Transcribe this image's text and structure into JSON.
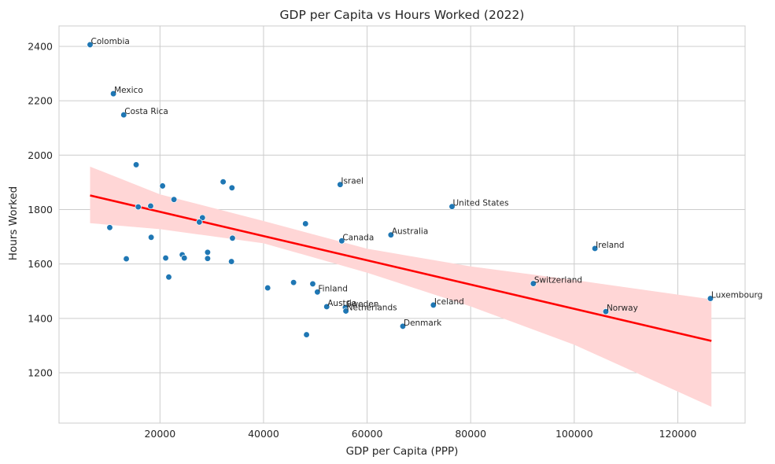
{
  "chart_data": {
    "type": "scatter",
    "title": "GDP per Capita vs Hours Worked (2022)",
    "xlabel": "GDP per Capita (PPP)",
    "ylabel": "Hours Worked",
    "xlim": [
      500,
      133000
    ],
    "ylim": [
      1015,
      2475
    ],
    "x_ticks": [
      20000,
      40000,
      60000,
      80000,
      100000,
      120000
    ],
    "y_ticks": [
      1200,
      1400,
      1600,
      1800,
      2000,
      2200,
      2400
    ],
    "grid": true,
    "point_color": "#1f77b4",
    "regression_color": "#ff0000",
    "band_color": "#ffd6d6",
    "regression": {
      "x": [
        6500,
        126500
      ],
      "y": [
        1852,
        1317
      ]
    },
    "confidence_band": {
      "x": [
        6500,
        20000,
        40000,
        60000,
        80000,
        100000,
        126500
      ],
      "upper": [
        1958,
        1856,
        1758,
        1656,
        1591,
        1541,
        1470
      ],
      "lower": [
        1750,
        1728,
        1676,
        1568,
        1444,
        1303,
        1075
      ]
    },
    "points": [
      {
        "x": 6500,
        "y": 2406,
        "label": "Colombia"
      },
      {
        "x": 11000,
        "y": 2226,
        "label": "Mexico"
      },
      {
        "x": 13000,
        "y": 2148,
        "label": "Costa Rica"
      },
      {
        "x": 15400,
        "y": 1965,
        "label": ""
      },
      {
        "x": 20500,
        "y": 1887,
        "label": ""
      },
      {
        "x": 22700,
        "y": 1837,
        "label": ""
      },
      {
        "x": 32200,
        "y": 1902,
        "label": ""
      },
      {
        "x": 33900,
        "y": 1880,
        "label": ""
      },
      {
        "x": 15800,
        "y": 1810,
        "label": ""
      },
      {
        "x": 18200,
        "y": 1813,
        "label": ""
      },
      {
        "x": 28200,
        "y": 1770,
        "label": ""
      },
      {
        "x": 27600,
        "y": 1754,
        "label": ""
      },
      {
        "x": 10300,
        "y": 1734,
        "label": ""
      },
      {
        "x": 18300,
        "y": 1698,
        "label": ""
      },
      {
        "x": 34000,
        "y": 1695,
        "label": ""
      },
      {
        "x": 13500,
        "y": 1619,
        "label": ""
      },
      {
        "x": 21100,
        "y": 1622,
        "label": ""
      },
      {
        "x": 24300,
        "y": 1634,
        "label": ""
      },
      {
        "x": 24700,
        "y": 1622,
        "label": ""
      },
      {
        "x": 29200,
        "y": 1643,
        "label": ""
      },
      {
        "x": 29200,
        "y": 1620,
        "label": ""
      },
      {
        "x": 33800,
        "y": 1609,
        "label": ""
      },
      {
        "x": 21700,
        "y": 1552,
        "label": ""
      },
      {
        "x": 40800,
        "y": 1512,
        "label": ""
      },
      {
        "x": 45800,
        "y": 1532,
        "label": ""
      },
      {
        "x": 48100,
        "y": 1748,
        "label": ""
      },
      {
        "x": 49500,
        "y": 1527,
        "label": ""
      },
      {
        "x": 50400,
        "y": 1497,
        "label": "Finland"
      },
      {
        "x": 52200,
        "y": 1443,
        "label": "Austria"
      },
      {
        "x": 55800,
        "y": 1440,
        "label": "Sweden"
      },
      {
        "x": 55900,
        "y": 1427,
        "label": "Netherlands"
      },
      {
        "x": 48300,
        "y": 1340,
        "label": ""
      },
      {
        "x": 54800,
        "y": 1892,
        "label": "Israel"
      },
      {
        "x": 55100,
        "y": 1685,
        "label": "Canada"
      },
      {
        "x": 64600,
        "y": 1707,
        "label": "Australia"
      },
      {
        "x": 66900,
        "y": 1371,
        "label": "Denmark"
      },
      {
        "x": 72800,
        "y": 1449,
        "label": "Iceland"
      },
      {
        "x": 76400,
        "y": 1811,
        "label": "United States"
      },
      {
        "x": 92100,
        "y": 1528,
        "label": "Switzerland"
      },
      {
        "x": 104000,
        "y": 1657,
        "label": "Ireland"
      },
      {
        "x": 106100,
        "y": 1425,
        "label": "Norway"
      },
      {
        "x": 126300,
        "y": 1473,
        "label": "Luxembourg"
      }
    ]
  }
}
